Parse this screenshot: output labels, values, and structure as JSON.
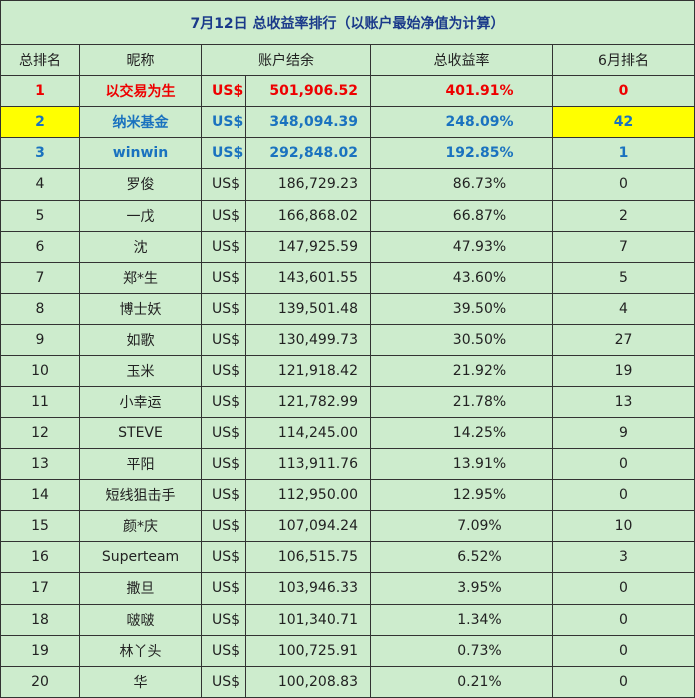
{
  "title": "7月12日 总收益率排行（以账户最始净值为计算）",
  "headers": [
    "总排名",
    "昵称",
    "账户结余",
    "总收益率",
    "6月排名"
  ],
  "colors": {
    "background": "#cdeccd",
    "highlight": "#ffff00",
    "first": "#ee0000",
    "top": "#1a72bf",
    "border": "#333333"
  },
  "rows": [
    {
      "rank": "1",
      "name": "以交易为生",
      "currency": "US$",
      "balance": "501,906.52",
      "return": "401.91%",
      "june": "0"
    },
    {
      "rank": "2",
      "name": "纳米基金",
      "currency": "US$",
      "balance": "348,094.39",
      "return": "248.09%",
      "june": "42"
    },
    {
      "rank": "3",
      "name": "winwin",
      "currency": "US$",
      "balance": "292,848.02",
      "return": "192.85%",
      "june": "1"
    },
    {
      "rank": "4",
      "name": "罗俊",
      "currency": "US$",
      "balance": "186,729.23",
      "return": "86.73%",
      "june": "0"
    },
    {
      "rank": "5",
      "name": "一戊",
      "currency": "US$",
      "balance": "166,868.02",
      "return": "66.87%",
      "june": "2"
    },
    {
      "rank": "6",
      "name": "沈",
      "currency": "US$",
      "balance": "147,925.59",
      "return": "47.93%",
      "june": "7"
    },
    {
      "rank": "7",
      "name": "郑*生",
      "currency": "US$",
      "balance": "143,601.55",
      "return": "43.60%",
      "june": "5"
    },
    {
      "rank": "8",
      "name": "博士妖",
      "currency": "US$",
      "balance": "139,501.48",
      "return": "39.50%",
      "june": "4"
    },
    {
      "rank": "9",
      "name": "如歌",
      "currency": "US$",
      "balance": "130,499.73",
      "return": "30.50%",
      "june": "27"
    },
    {
      "rank": "10",
      "name": "玉米",
      "currency": "US$",
      "balance": "121,918.42",
      "return": "21.92%",
      "june": "19"
    },
    {
      "rank": "11",
      "name": "小幸运",
      "currency": "US$",
      "balance": "121,782.99",
      "return": "21.78%",
      "june": "13"
    },
    {
      "rank": "12",
      "name": "STEVE",
      "currency": "US$",
      "balance": "114,245.00",
      "return": "14.25%",
      "june": "9"
    },
    {
      "rank": "13",
      "name": "平阳",
      "currency": "US$",
      "balance": "113,911.76",
      "return": "13.91%",
      "june": "0"
    },
    {
      "rank": "14",
      "name": "短线狙击手",
      "currency": "US$",
      "balance": "112,950.00",
      "return": "12.95%",
      "june": "0"
    },
    {
      "rank": "15",
      "name": "颜*庆",
      "currency": "US$",
      "balance": "107,094.24",
      "return": "7.09%",
      "june": "10"
    },
    {
      "rank": "16",
      "name": "Superteam",
      "currency": "US$",
      "balance": "106,515.75",
      "return": "6.52%",
      "june": "3"
    },
    {
      "rank": "17",
      "name": "撒旦",
      "currency": "US$",
      "balance": "103,946.33",
      "return": "3.95%",
      "june": "0"
    },
    {
      "rank": "18",
      "name": "啵啵",
      "currency": "US$",
      "balance": "101,340.71",
      "return": "1.34%",
      "june": "0"
    },
    {
      "rank": "19",
      "name": "林丫头",
      "currency": "US$",
      "balance": "100,725.91",
      "return": "0.73%",
      "june": "0"
    },
    {
      "rank": "20",
      "name": "华",
      "currency": "US$",
      "balance": "100,208.83",
      "return": "0.21%",
      "june": "0"
    }
  ]
}
